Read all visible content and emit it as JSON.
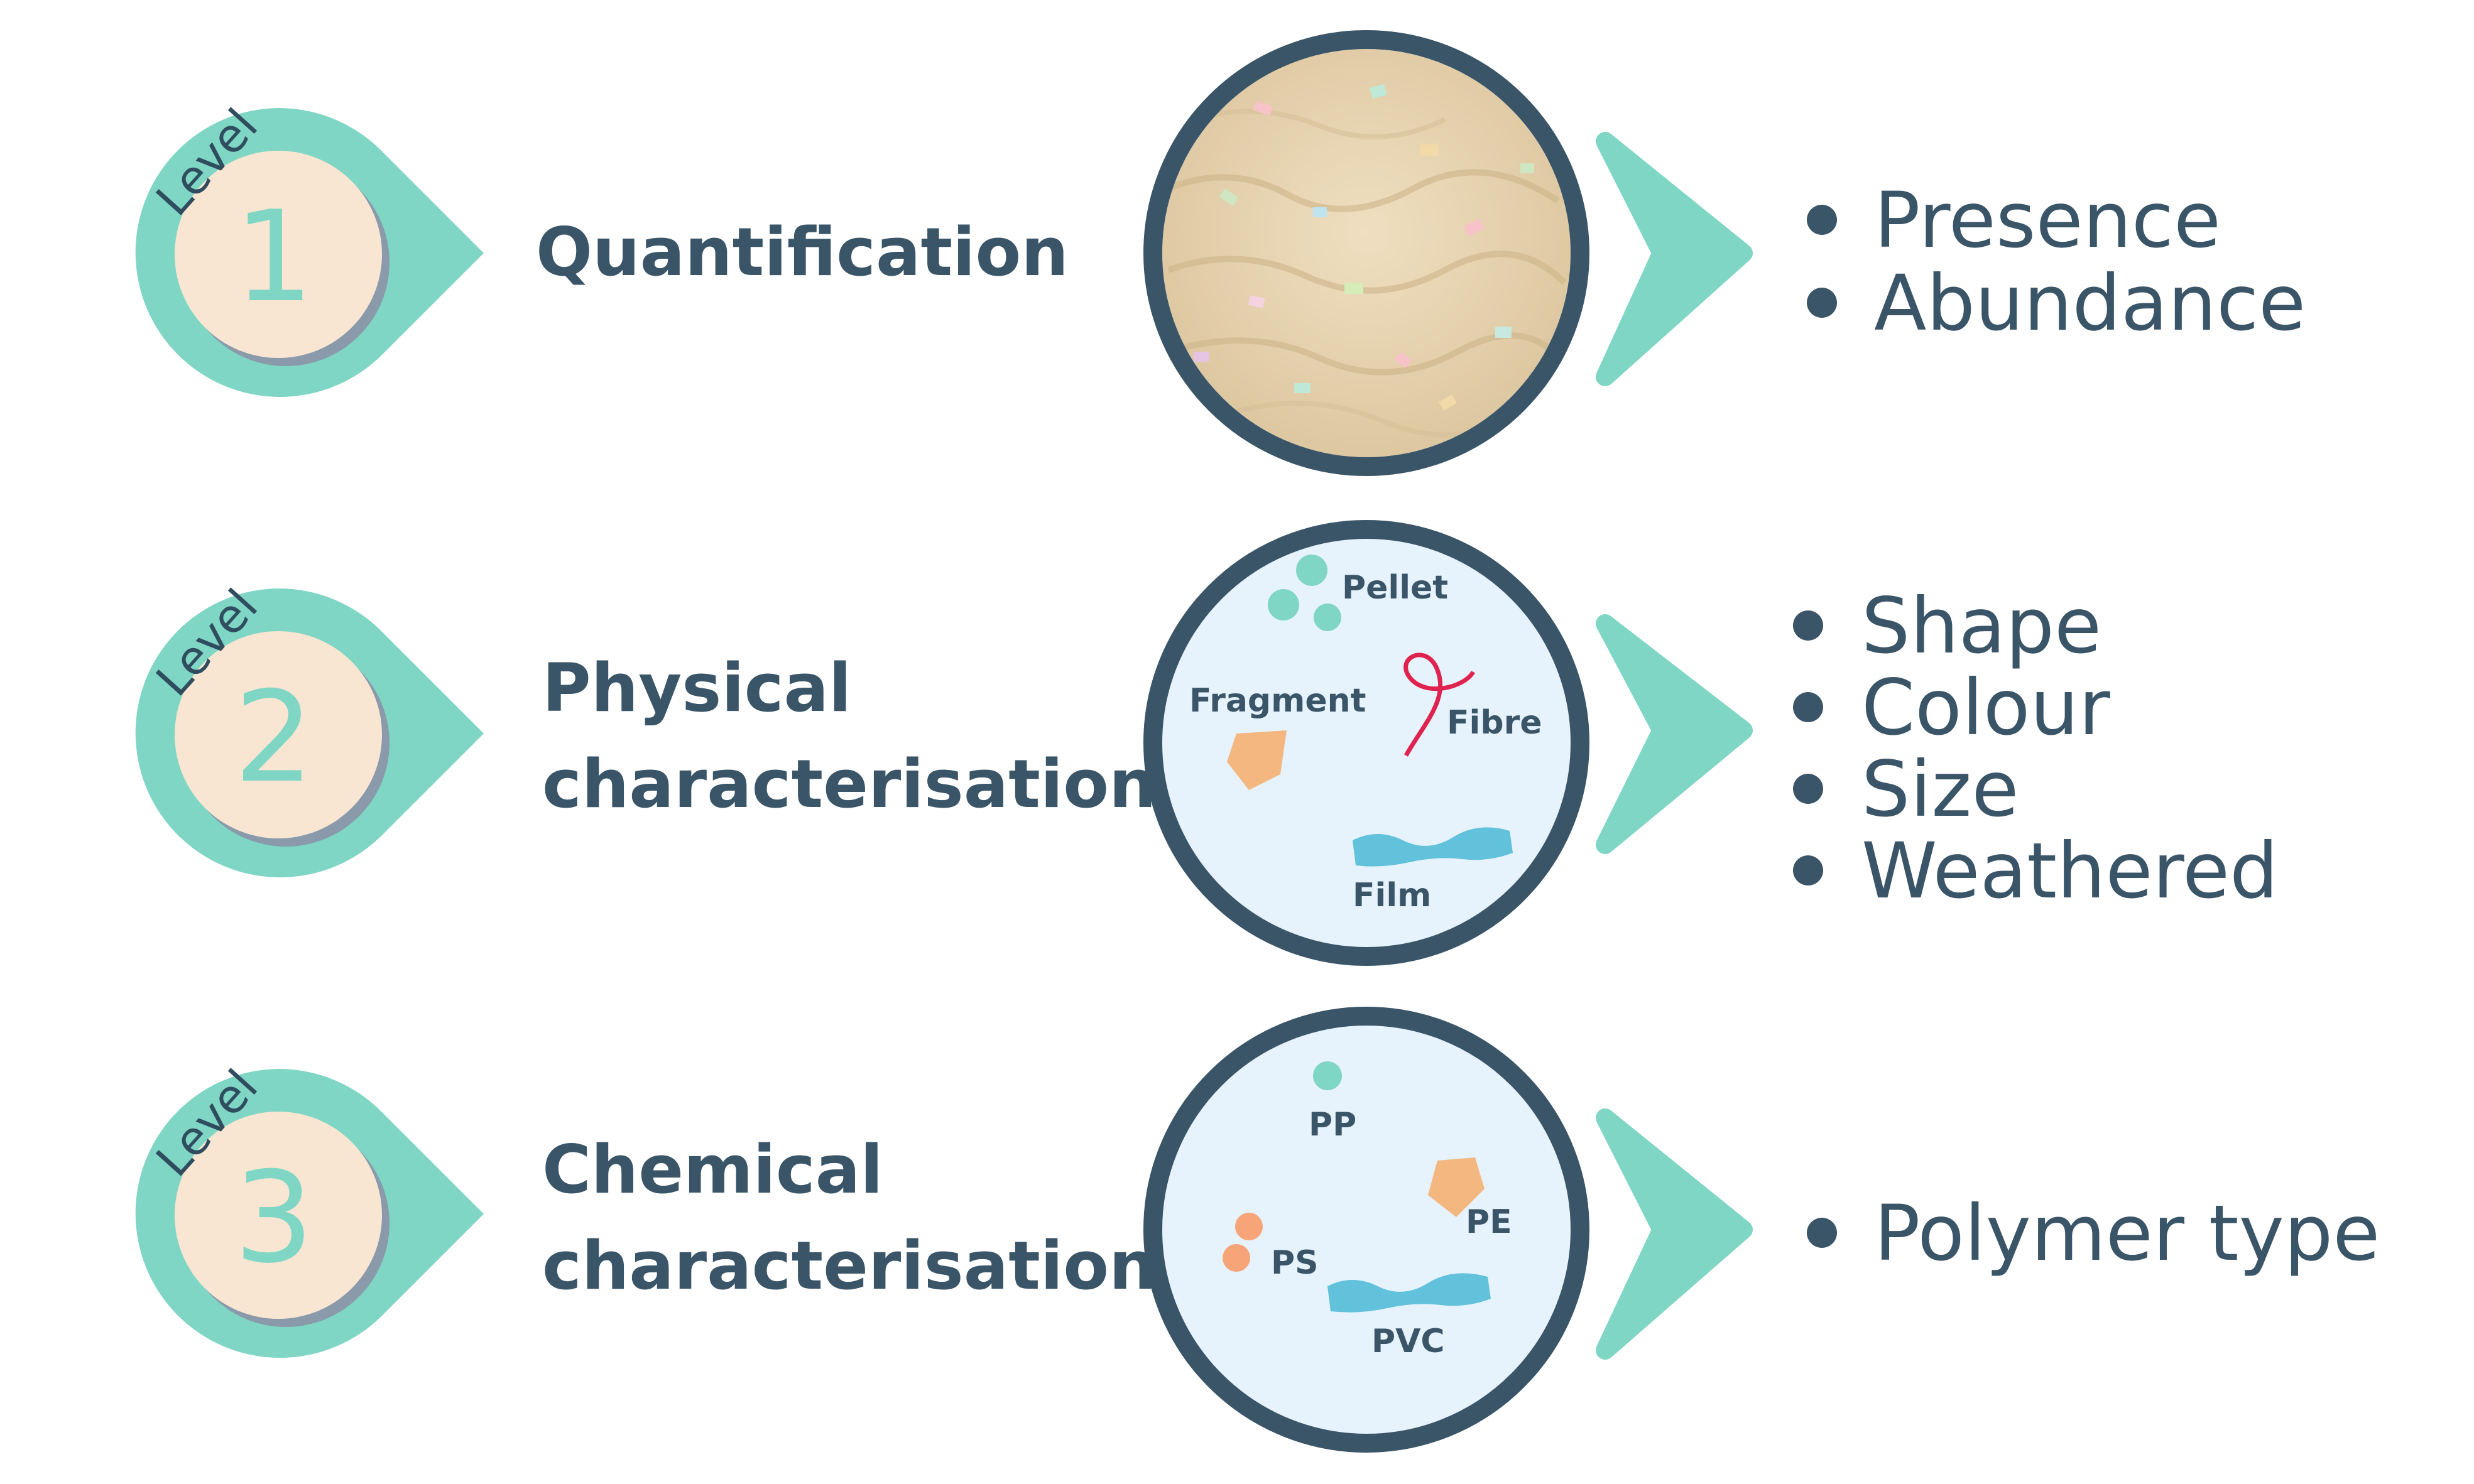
{
  "levels": [
    {
      "level_word": "Level",
      "number": "1",
      "title_lines": [
        "Quantification"
      ],
      "bullets": [
        "Presence",
        "Abundance"
      ]
    },
    {
      "level_word": "Level",
      "number": "2",
      "title_lines": [
        "Physical",
        "characterisation"
      ],
      "bullets": [
        "Shape",
        "Colour",
        "Size",
        "Weathered"
      ],
      "circle_labels": {
        "pellet": "Pellet",
        "fragment": "Fragment",
        "fibre": "Fibre",
        "film": "Film"
      }
    },
    {
      "level_word": "Level",
      "number": "3",
      "title_lines": [
        "Chemical",
        "characterisation"
      ],
      "bullets": [
        "Polymer type"
      ],
      "circle_labels": {
        "pp": "PP",
        "pe": "PE",
        "ps": "PS",
        "pvc": "PVC"
      }
    }
  ],
  "colors": {
    "teal": "#7fd6c4",
    "cream": "#f8e6d2",
    "navy": "#3a5568",
    "circle_fill": "#e6f2fc",
    "sand": "#e3cfad",
    "orange": "#f4b77f",
    "salmon": "#f7a578",
    "blue_film": "#62c2dc",
    "fibre_red": "#e0224f"
  },
  "icons": {
    "bullet": "bullet-dot-icon",
    "arrow": "chevron-right-icon"
  }
}
